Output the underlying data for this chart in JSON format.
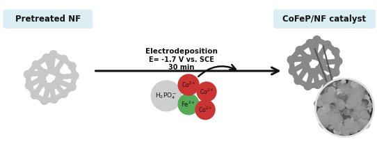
{
  "bg_color": "#ffffff",
  "label_box_color": "#dbeef4",
  "label1": "Pretreated NF",
  "label2": "CoFeP/NF catalyst",
  "text_line1": "Electrodeposition",
  "text_line2": "E= -1.7 V vs. SCE",
  "text_line3": "30 min",
  "h2po4_color": "#cecece",
  "fe_color": "#55aa55",
  "co_color": "#cc3333",
  "foam_color_left": "#c8c8c8",
  "foam_color_right": "#888888",
  "sem_dark": "#404040",
  "sem_mid": "#707070",
  "sem_light": "#a0a0a0"
}
